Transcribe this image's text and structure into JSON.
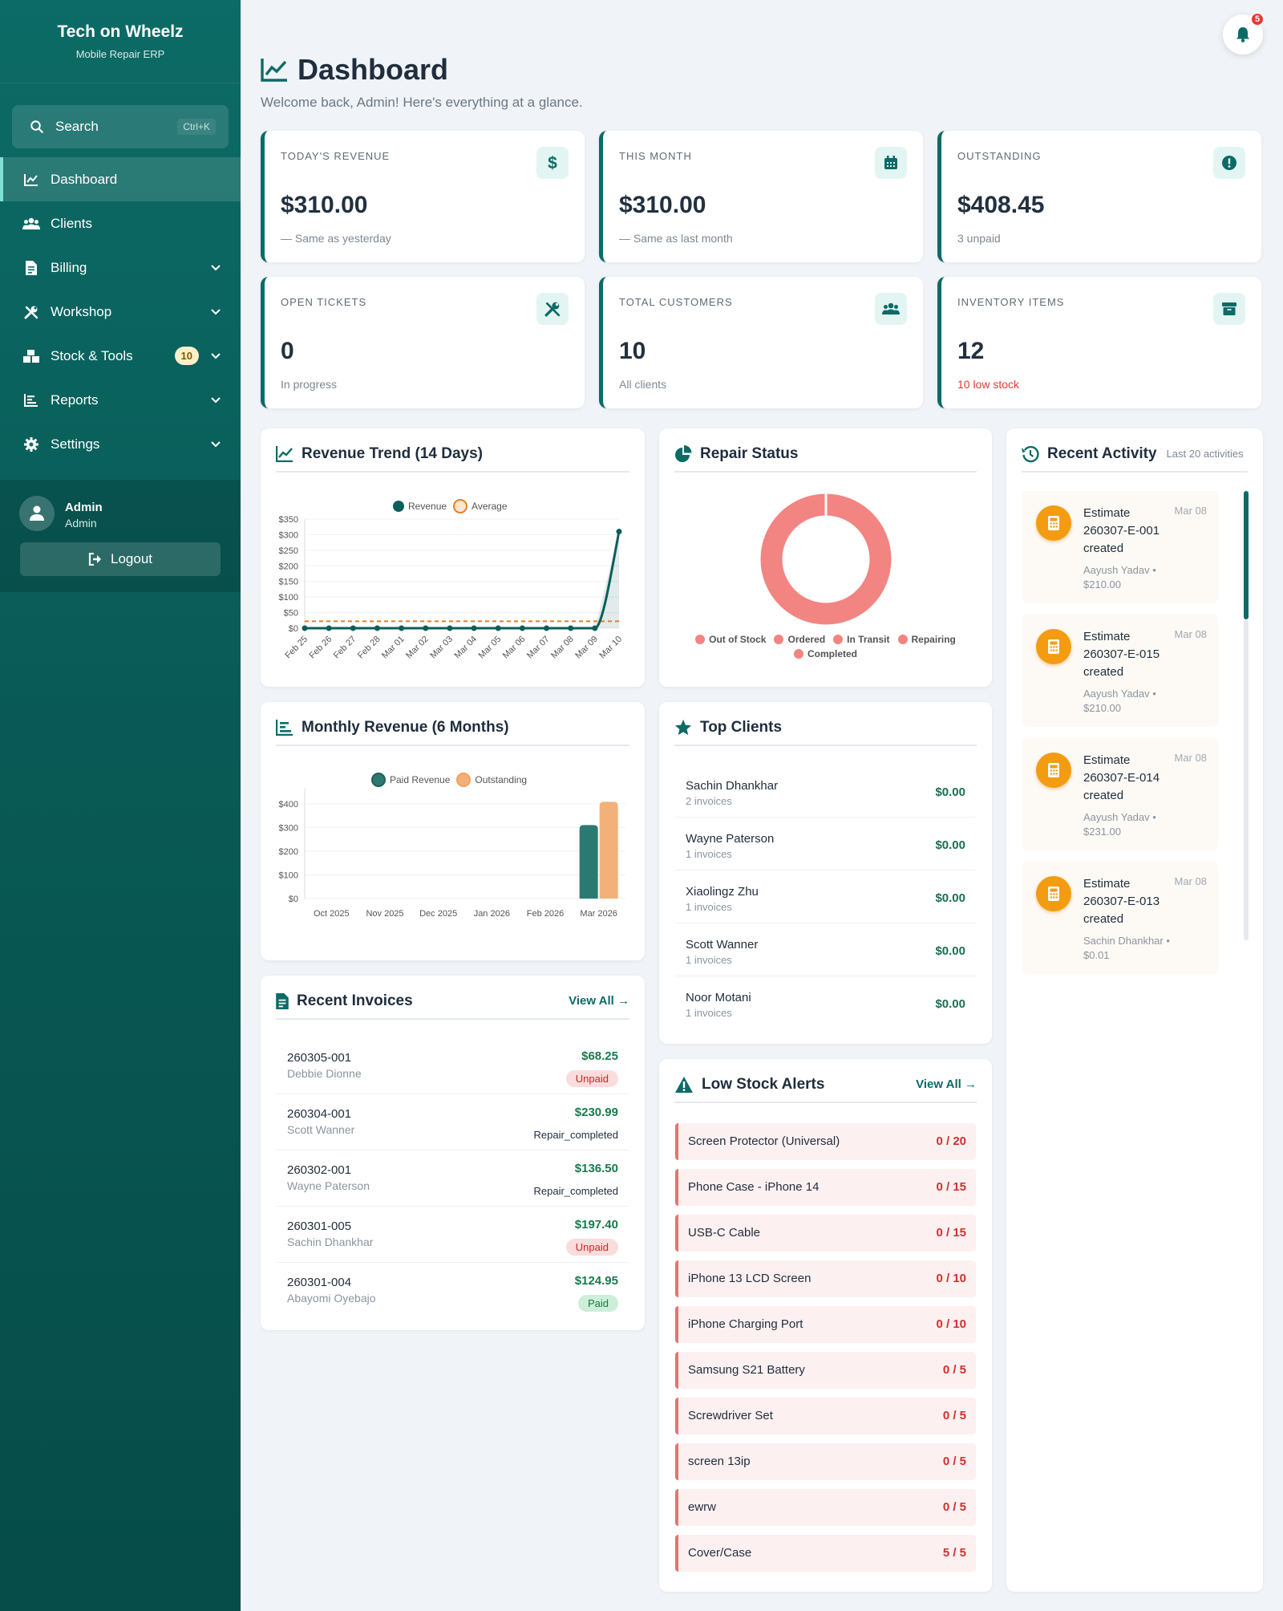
{
  "brand": {
    "name": "Tech on Wheelz",
    "subtitle": "Mobile Repair ERP"
  },
  "search": {
    "label": "Search",
    "shortcut": "Ctrl+K"
  },
  "nav": [
    {
      "label": "Dashboard",
      "icon": "chart-line-icon",
      "active": true
    },
    {
      "label": "Clients",
      "icon": "users-icon"
    },
    {
      "label": "Billing",
      "icon": "file-invoice-icon",
      "chevron": true
    },
    {
      "label": "Workshop",
      "icon": "tools-icon",
      "chevron": true
    },
    {
      "label": "Stock & Tools",
      "icon": "boxes-icon",
      "badge": "10",
      "chevron": true
    },
    {
      "label": "Reports",
      "icon": "bar-chart-icon",
      "chevron": true
    },
    {
      "label": "Settings",
      "icon": "gear-icon",
      "chevron": true
    }
  ],
  "user": {
    "name": "Admin",
    "role": "Admin",
    "logout": "Logout"
  },
  "notifications": {
    "count": "5"
  },
  "header": {
    "title": "Dashboard",
    "subtitle": "Welcome back, Admin! Here's everything at a glance."
  },
  "stats": [
    {
      "label": "TODAY'S REVENUE",
      "value": "$310.00",
      "note": "— Same as yesterday",
      "icon": "dollar-icon"
    },
    {
      "label": "THIS MONTH",
      "value": "$310.00",
      "note": "— Same as last month",
      "icon": "calendar-icon"
    },
    {
      "label": "OUTSTANDING",
      "value": "$408.45",
      "note": "3 unpaid",
      "icon": "exclamation-circle-icon"
    },
    {
      "label": "OPEN TICKETS",
      "value": "0",
      "note": "In progress",
      "icon": "tools-icon"
    },
    {
      "label": "TOTAL CUSTOMERS",
      "value": "10",
      "note": "All clients",
      "icon": "users-icon"
    },
    {
      "label": "INVENTORY ITEMS",
      "value": "12",
      "note": "10 low stock",
      "note_color": "#e53935",
      "icon": "box-icon"
    }
  ],
  "revenue_trend": {
    "title": "Revenue Trend (14 Days)",
    "legend": [
      "Revenue",
      "Average"
    ],
    "chart_data": {
      "type": "line",
      "x": [
        "Feb 25",
        "Feb 26",
        "Feb 27",
        "Feb 28",
        "Mar 01",
        "Mar 02",
        "Mar 03",
        "Mar 04",
        "Mar 05",
        "Mar 06",
        "Mar 07",
        "Mar 08",
        "Mar 09",
        "Mar 10"
      ],
      "series": [
        {
          "name": "Revenue",
          "values": [
            0,
            0,
            0,
            0,
            0,
            0,
            0,
            0,
            0,
            0,
            0,
            0,
            0,
            310
          ],
          "color": "#0c5e5a"
        },
        {
          "name": "Average",
          "values": [
            22.14,
            22.14,
            22.14,
            22.14,
            22.14,
            22.14,
            22.14,
            22.14,
            22.14,
            22.14,
            22.14,
            22.14,
            22.14,
            22.14
          ],
          "color": "#e67e22"
        }
      ],
      "yticks": [
        "$0",
        "$50",
        "$100",
        "$150",
        "$200",
        "$250",
        "$300",
        "$350"
      ],
      "ylim": [
        0,
        350
      ]
    }
  },
  "repair_status": {
    "title": "Repair Status",
    "chart_data": {
      "type": "pie",
      "labels": [
        "Out of Stock",
        "Ordered",
        "In Transit",
        "Repairing",
        "Completed"
      ],
      "values": [
        1,
        0,
        0,
        0,
        0
      ],
      "color": "#f28482"
    }
  },
  "recent_activity": {
    "title": "Recent Activity",
    "subtitle": "Last 20 activities",
    "items": [
      {
        "title": "Estimate 260307-E-001 created",
        "date": "Mar 08",
        "meta": "Aayush Yadav • $210.00"
      },
      {
        "title": "Estimate 260307-E-015 created",
        "date": "Mar 08",
        "meta": "Aayush Yadav • $210.00"
      },
      {
        "title": "Estimate 260307-E-014 created",
        "date": "Mar 08",
        "meta": "Aayush Yadav • $231.00"
      },
      {
        "title": "Estimate 260307-E-013 created",
        "date": "Mar 08",
        "meta": "Sachin Dhankhar • $0.01"
      }
    ]
  },
  "monthly_revenue": {
    "title": "Monthly Revenue (6 Months)",
    "legend": [
      "Paid Revenue",
      "Outstanding"
    ],
    "chart_data": {
      "type": "bar",
      "categories": [
        "Oct 2025",
        "Nov 2025",
        "Dec 2025",
        "Jan 2026",
        "Feb 2026",
        "Mar 2026"
      ],
      "series": [
        {
          "name": "Paid Revenue",
          "values": [
            0,
            0,
            0,
            0,
            0,
            310
          ],
          "color": "#2a7a72"
        },
        {
          "name": "Outstanding",
          "values": [
            0,
            0,
            0,
            0,
            0,
            408.45
          ],
          "color": "#f3b17a"
        }
      ],
      "yticks": [
        "$0",
        "$100",
        "$200",
        "$300",
        "$400"
      ],
      "ylim": [
        0,
        440
      ]
    }
  },
  "top_clients": {
    "title": "Top Clients",
    "items": [
      {
        "name": "Sachin Dhankhar",
        "sub": "2 invoices",
        "amount": "$0.00"
      },
      {
        "name": "Wayne Paterson",
        "sub": "1 invoices",
        "amount": "$0.00"
      },
      {
        "name": "Xiaolingz Zhu",
        "sub": "1 invoices",
        "amount": "$0.00"
      },
      {
        "name": "Scott Wanner",
        "sub": "1 invoices",
        "amount": "$0.00"
      },
      {
        "name": "Noor Motani",
        "sub": "1 invoices",
        "amount": "$0.00"
      }
    ]
  },
  "recent_invoices": {
    "title": "Recent Invoices",
    "view_all": "View All →",
    "items": [
      {
        "number": "260305-001",
        "client": "Debbie Dionne",
        "amount": "$68.25",
        "status": "Unpaid",
        "type": "unpaid"
      },
      {
        "number": "260304-001",
        "client": "Scott Wanner",
        "amount": "$230.99",
        "status": "Repair_completed",
        "type": "plain"
      },
      {
        "number": "260302-001",
        "client": "Wayne Paterson",
        "amount": "$136.50",
        "status": "Repair_completed",
        "type": "plain"
      },
      {
        "number": "260301-005",
        "client": "Sachin Dhankhar",
        "amount": "$197.40",
        "status": "Unpaid",
        "type": "unpaid"
      },
      {
        "number": "260301-004",
        "client": "Abayomi Oyebajo",
        "amount": "$124.95",
        "status": "Paid",
        "type": "paid"
      }
    ]
  },
  "low_stock": {
    "title": "Low Stock Alerts",
    "view_all": "View All →",
    "items": [
      {
        "name": "Screen Protector (Universal)",
        "qty": "0 / 20"
      },
      {
        "name": "Phone Case - iPhone 14",
        "qty": "0 / 15"
      },
      {
        "name": "USB-C Cable",
        "qty": "0 / 15"
      },
      {
        "name": "iPhone 13 LCD Screen",
        "qty": "0 / 10"
      },
      {
        "name": "iPhone Charging Port",
        "qty": "0 / 10"
      },
      {
        "name": "Samsung S21 Battery",
        "qty": "0 / 5"
      },
      {
        "name": "Screwdriver Set",
        "qty": "0 / 5"
      },
      {
        "name": "screen 13ip",
        "qty": "0 / 5"
      },
      {
        "name": "ewrw",
        "qty": "0 / 5"
      },
      {
        "name": "Cover/Case",
        "qty": "5 / 5"
      }
    ]
  }
}
